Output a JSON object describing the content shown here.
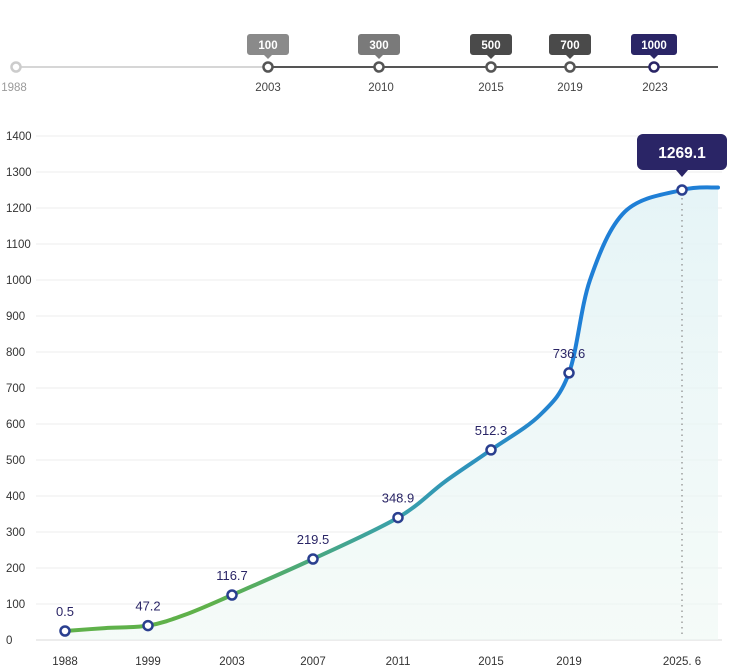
{
  "timeline": {
    "milestones": [
      {
        "year": "1988",
        "badge": ""
      },
      {
        "year": "2003",
        "badge": "100"
      },
      {
        "year": "2010",
        "badge": "300"
      },
      {
        "year": "2015",
        "badge": "500"
      },
      {
        "year": "2019",
        "badge": "700"
      },
      {
        "year": "2023",
        "badge": "1000"
      }
    ],
    "colors": {
      "start": "#cccccc",
      "badge_light": "#8a8a8a",
      "badge_dark": "#4a4a4a",
      "badge_final": "#2a2566",
      "line": "#555555"
    }
  },
  "chart_data": {
    "type": "line",
    "title": "",
    "xlabel": "",
    "ylabel": "",
    "y_ticks": [
      "0",
      "100",
      "200",
      "300",
      "400",
      "500",
      "600",
      "700",
      "800",
      "900",
      "1000",
      "1100",
      "1200",
      "1300",
      "1400"
    ],
    "ylim": [
      0,
      1400
    ],
    "grid": true,
    "x_ticks": [
      "1988",
      "1999",
      "2003",
      "2007",
      "2011",
      "2015",
      "2019",
      "2025. 6"
    ],
    "points": [
      {
        "x": "1988",
        "y": 25,
        "label": "0.5"
      },
      {
        "x": "1999",
        "y": 40,
        "label": "47.2"
      },
      {
        "x": "2003",
        "y": 125,
        "label": "116.7"
      },
      {
        "x": "2007",
        "y": 225,
        "label": "219.5"
      },
      {
        "x": "2011",
        "y": 340,
        "label": "348.9"
      },
      {
        "x": "2015",
        "y": 528,
        "label": "512.3"
      },
      {
        "x": "2019",
        "y": 742,
        "label": "736.6"
      },
      {
        "x": "2025. 6",
        "y": 1250,
        "label": "1269.1"
      }
    ],
    "highlight": "1269.1",
    "colors": {
      "line_start": "#5fb14a",
      "line_mid": "#3aa1a8",
      "line_end": "#1f7fd6",
      "marker": "#2a3f8f",
      "label": "#2a2566",
      "callout": "#2a2566",
      "area": "#e6f5f4"
    }
  }
}
